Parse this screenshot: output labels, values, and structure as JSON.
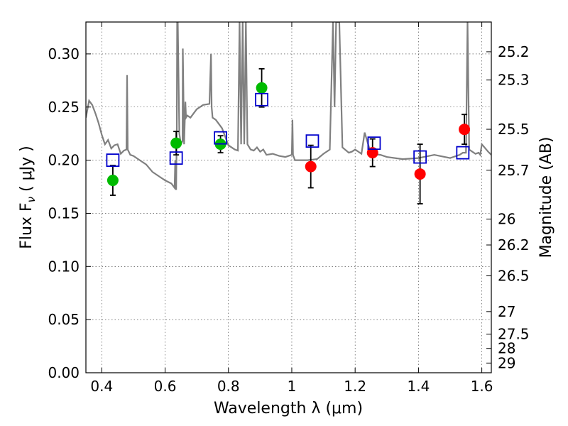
{
  "chart_data": {
    "type": "scatter",
    "xlabel": "Wavelength  λ (μm)",
    "ylabel": "Flux  F",
    "ylabel_sub": "ν",
    "ylabel_unit": "  ( μJy )",
    "y2label": "Magnitude (AB)",
    "xlim": [
      0.35,
      1.63
    ],
    "ylim": [
      0.0,
      0.33
    ],
    "grid": true,
    "x_ticks": [
      0.4,
      0.6,
      0.8,
      1.0,
      1.2,
      1.4,
      1.6
    ],
    "x_tick_labels": [
      "0.4",
      "0.6",
      "0.8",
      "1",
      "1.2",
      "1.4",
      "1.6"
    ],
    "y_ticks": [
      0.0,
      0.05,
      0.1,
      0.15,
      0.2,
      0.25,
      0.3
    ],
    "y_tick_labels": [
      "0.00",
      "0.05",
      "0.10",
      "0.15",
      "0.20",
      "0.25",
      "0.30"
    ],
    "mag_ticks": [
      "25.2",
      "25.3",
      "25.5",
      "25.7",
      "26",
      "26.2",
      "26.5",
      "27",
      "27.5",
      "28",
      "29"
    ],
    "colors": {
      "model": "#808080",
      "observed_green": "#00bb00",
      "observed_red": "#ff0000",
      "model_photometry": "#0000cc",
      "errorbar": "#000000"
    },
    "observed_points": [
      {
        "x": 0.435,
        "y": 0.181,
        "err": 0.014,
        "color": "green"
      },
      {
        "x": 0.635,
        "y": 0.216,
        "err": 0.011,
        "color": "green"
      },
      {
        "x": 0.775,
        "y": 0.215,
        "err": 0.008,
        "color": "green"
      },
      {
        "x": 0.905,
        "y": 0.268,
        "err": 0.018,
        "color": "green"
      },
      {
        "x": 1.06,
        "y": 0.194,
        "err": 0.02,
        "color": "red"
      },
      {
        "x": 1.255,
        "y": 0.207,
        "err": 0.013,
        "color": "red"
      },
      {
        "x": 1.405,
        "y": 0.187,
        "err": 0.028,
        "color": "red"
      },
      {
        "x": 1.545,
        "y": 0.229,
        "err": 0.014,
        "color": "red"
      }
    ],
    "model_photometry": [
      {
        "x": 0.435,
        "y": 0.2
      },
      {
        "x": 0.635,
        "y": 0.202
      },
      {
        "x": 0.775,
        "y": 0.221
      },
      {
        "x": 0.905,
        "y": 0.257
      },
      {
        "x": 1.065,
        "y": 0.218
      },
      {
        "x": 1.26,
        "y": 0.216
      },
      {
        "x": 1.405,
        "y": 0.203
      },
      {
        "x": 1.54,
        "y": 0.207
      }
    ],
    "model_spectrum": {
      "x": [
        0.35,
        0.36,
        0.37,
        0.38,
        0.39,
        0.4,
        0.41,
        0.42,
        0.43,
        0.44,
        0.45,
        0.46,
        0.47,
        0.478,
        0.48,
        0.482,
        0.49,
        0.5,
        0.52,
        0.54,
        0.56,
        0.58,
        0.6,
        0.62,
        0.63,
        0.632,
        0.635,
        0.637,
        0.638,
        0.64,
        0.645,
        0.65,
        0.655,
        0.656,
        0.66,
        0.664,
        0.666,
        0.67,
        0.68,
        0.7,
        0.72,
        0.74,
        0.745,
        0.747,
        0.75,
        0.76,
        0.78,
        0.8,
        0.82,
        0.83,
        0.835,
        0.84,
        0.845,
        0.85,
        0.855,
        0.86,
        0.87,
        0.88,
        0.89,
        0.9,
        0.91,
        0.92,
        0.94,
        0.96,
        0.98,
        1.0,
        1.002,
        1.004,
        1.01,
        1.05,
        1.08,
        1.1,
        1.12,
        1.13,
        1.135,
        1.14,
        1.145,
        1.15,
        1.16,
        1.18,
        1.19,
        1.2,
        1.22,
        1.23,
        1.25,
        1.28,
        1.3,
        1.35,
        1.4,
        1.45,
        1.5,
        1.53,
        1.54,
        1.55,
        1.555,
        1.56,
        1.58,
        1.59,
        1.595,
        1.6,
        1.62,
        1.63
      ],
      "y": [
        0.24,
        0.256,
        0.252,
        0.244,
        0.235,
        0.224,
        0.215,
        0.219,
        0.211,
        0.214,
        0.215,
        0.206,
        0.209,
        0.21,
        0.28,
        0.21,
        0.205,
        0.204,
        0.2,
        0.196,
        0.189,
        0.185,
        0.181,
        0.178,
        0.174,
        0.2,
        0.172,
        0.23,
        0.33,
        0.33,
        0.225,
        0.215,
        0.218,
        0.305,
        0.215,
        0.255,
        0.24,
        0.242,
        0.24,
        0.248,
        0.252,
        0.253,
        0.3,
        0.25,
        0.24,
        0.238,
        0.23,
        0.214,
        0.21,
        0.209,
        0.33,
        0.215,
        0.33,
        0.215,
        0.33,
        0.215,
        0.21,
        0.209,
        0.212,
        0.208,
        0.21,
        0.205,
        0.206,
        0.204,
        0.203,
        0.205,
        0.238,
        0.205,
        0.2,
        0.2,
        0.201,
        0.206,
        0.21,
        0.33,
        0.25,
        0.33,
        0.33,
        0.33,
        0.212,
        0.207,
        0.208,
        0.21,
        0.206,
        0.226,
        0.206,
        0.205,
        0.203,
        0.201,
        0.202,
        0.205,
        0.202,
        0.205,
        0.207,
        0.207,
        0.33,
        0.21,
        0.206,
        0.207,
        0.205,
        0.215,
        0.208,
        0.205
      ]
    }
  }
}
